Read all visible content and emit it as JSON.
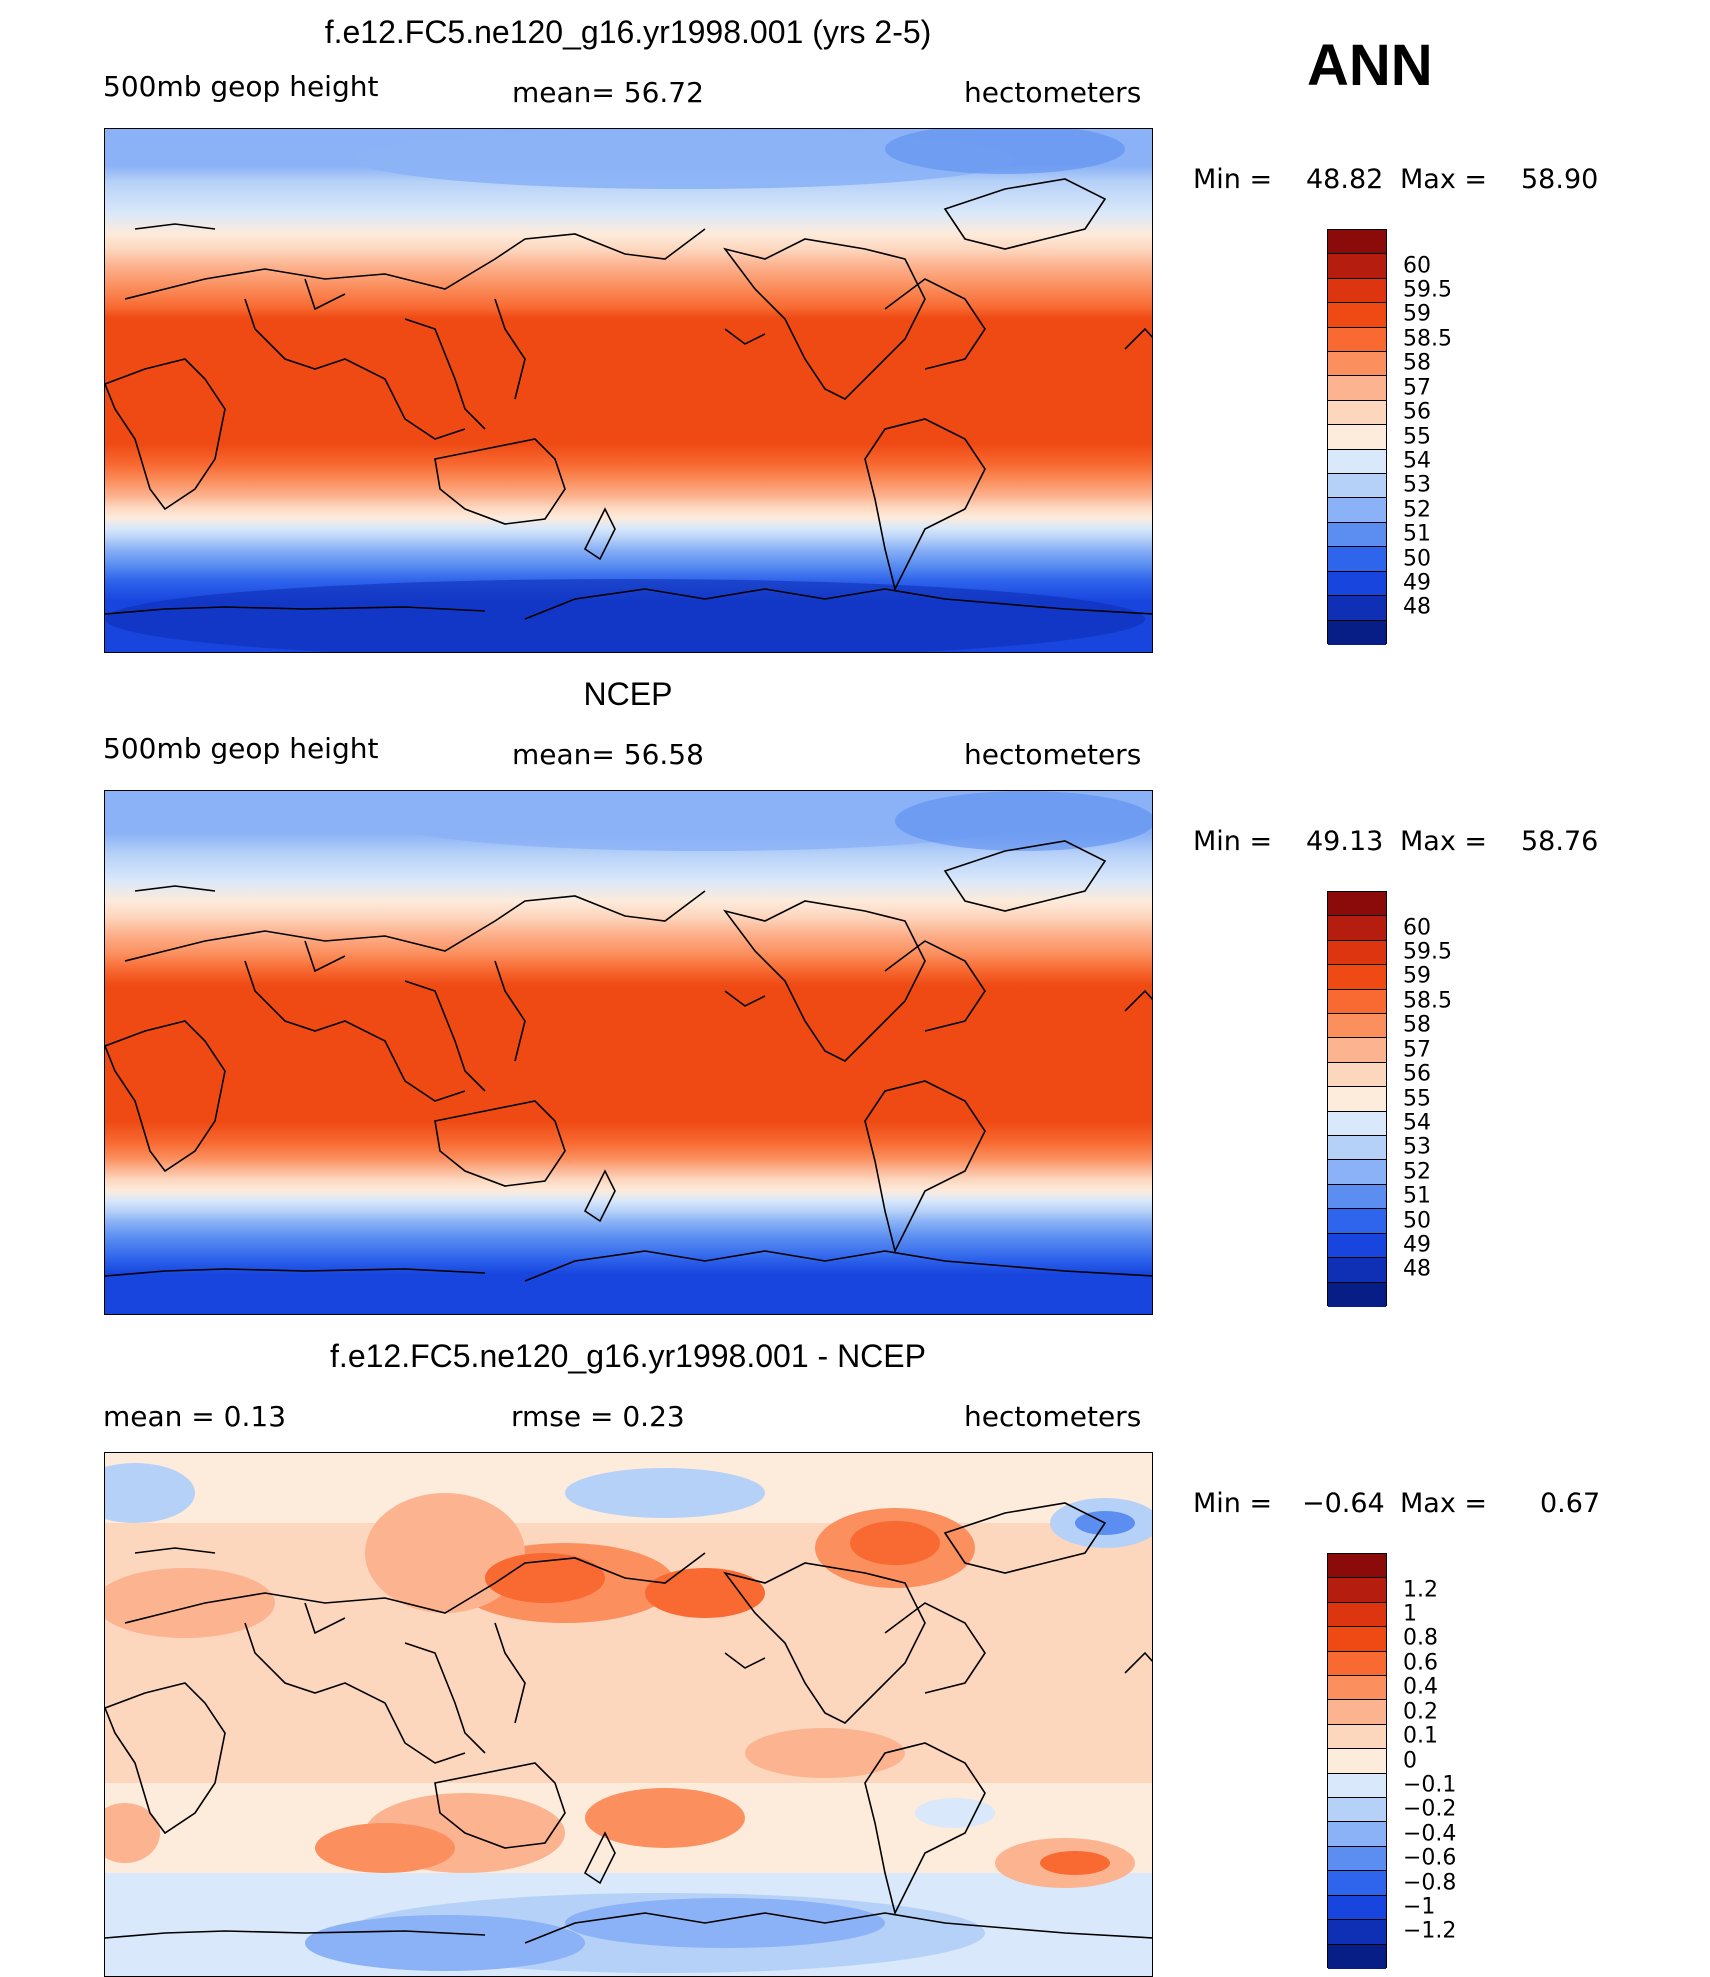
{
  "season": "ANN",
  "panels": [
    {
      "title": "f.e12.FC5.ne120_g16.yr1998.001 (yrs 2-5)",
      "left_label": "500mb  geop  height",
      "center_label": "mean=   56.72",
      "right_label": "hectometers",
      "min_label": "Min  =",
      "min_value": "48.82",
      "max_label": "Max  =",
      "max_value": "58.90",
      "colorbar": {
        "labels": [
          "60",
          "59.5",
          "59",
          "58.5",
          "58",
          "57",
          "56",
          "55",
          "54",
          "53",
          "52",
          "51",
          "50",
          "49",
          "48"
        ],
        "colors": [
          "#8b0a0a",
          "#b51e0e",
          "#dc3510",
          "#ef4a14",
          "#f86a32",
          "#fb8f5e",
          "#fcb390",
          "#fdd6be",
          "#fdebdb",
          "#d9e8fa",
          "#b6d1f8",
          "#8bb2f6",
          "#5b8ef0",
          "#2f64ec",
          "#1745de",
          "#0f2fb5",
          "#081e87"
        ]
      }
    },
    {
      "title": "NCEP",
      "left_label": "500mb  geop  height",
      "center_label": "mean=   56.58",
      "right_label": "hectometers",
      "min_label": "Min  =",
      "min_value": "49.13",
      "max_label": "Max  =",
      "max_value": "58.76",
      "colorbar": {
        "labels": [
          "60",
          "59.5",
          "59",
          "58.5",
          "58",
          "57",
          "56",
          "55",
          "54",
          "53",
          "52",
          "51",
          "50",
          "49",
          "48"
        ],
        "colors": [
          "#8b0a0a",
          "#b51e0e",
          "#dc3510",
          "#ef4a14",
          "#f86a32",
          "#fb8f5e",
          "#fcb390",
          "#fdd6be",
          "#fdebdb",
          "#d9e8fa",
          "#b6d1f8",
          "#8bb2f6",
          "#5b8ef0",
          "#2f64ec",
          "#1745de",
          "#0f2fb5",
          "#081e87"
        ]
      }
    },
    {
      "title": "f.e12.FC5.ne120_g16.yr1998.001 - NCEP",
      "left_label": "mean  =      0.13",
      "center_label": "rmse  =      0.23",
      "right_label": "hectometers",
      "min_label": "Min  =",
      "min_value": "−0.64",
      "max_label": "Max  =",
      "max_value": "0.67",
      "colorbar": {
        "labels": [
          "1.2",
          "1",
          "0.8",
          "0.6",
          "0.4",
          "0.2",
          "0.1",
          "0",
          "−0.1",
          "−0.2",
          "−0.4",
          "−0.6",
          "−0.8",
          "−1",
          "−1.2"
        ],
        "colors": [
          "#8b0a0a",
          "#b51e0e",
          "#dc3510",
          "#ef4a14",
          "#f86a32",
          "#fb8f5e",
          "#fcb390",
          "#fdd6be",
          "#fdebdb",
          "#d9e8fa",
          "#b6d1f8",
          "#8bb2f6",
          "#5b8ef0",
          "#2f64ec",
          "#1745de",
          "#0f2fb5",
          "#081e87"
        ]
      }
    }
  ]
}
